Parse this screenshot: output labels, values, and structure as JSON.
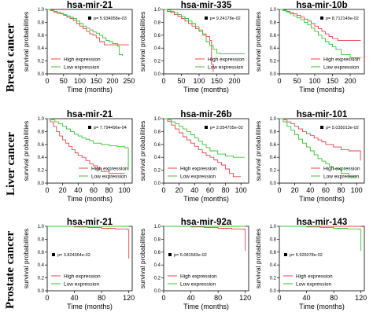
{
  "figure": {
    "row_labels": [
      "Breast cancer",
      "Liver cancer",
      "Prostate cancer"
    ],
    "ylabel": "survival probabilities",
    "xlabel": "Time (months)",
    "legend": [
      "High expression",
      "Low expression"
    ],
    "colors": {
      "high": "#e8434b",
      "low": "#39c232"
    }
  },
  "chart_data": [
    {
      "type": "line",
      "title": "hsa-mir-21",
      "p_value": "p= 5.934958e-03",
      "xlabel": "Time (months)",
      "ylabel": "survival probabilities",
      "xlim": [
        0,
        260
      ],
      "ylim": [
        0,
        1
      ],
      "xticks": [
        0,
        50,
        100,
        150,
        200,
        250
      ],
      "legend_position": "bottom-left",
      "p_position": "top-right",
      "series": [
        {
          "name": "High expression",
          "x": [
            0,
            10,
            20,
            30,
            40,
            50,
            60,
            70,
            80,
            90,
            100,
            110,
            120,
            130,
            140,
            150,
            160,
            175,
            185,
            200,
            250
          ],
          "y": [
            1,
            0.98,
            0.96,
            0.94,
            0.93,
            0.91,
            0.88,
            0.86,
            0.83,
            0.78,
            0.74,
            0.7,
            0.66,
            0.62,
            0.6,
            0.56,
            0.5,
            0.45,
            0.45,
            0.45,
            0.45
          ]
        },
        {
          "name": "Low expression",
          "x": [
            0,
            10,
            20,
            30,
            40,
            50,
            60,
            70,
            80,
            90,
            100,
            110,
            120,
            130,
            140,
            150,
            160,
            170,
            180,
            190,
            200,
            215,
            220,
            230
          ],
          "y": [
            1,
            0.99,
            0.97,
            0.96,
            0.94,
            0.92,
            0.9,
            0.88,
            0.86,
            0.82,
            0.78,
            0.74,
            0.71,
            0.68,
            0.65,
            0.63,
            0.6,
            0.56,
            0.52,
            0.5,
            0.47,
            0.43,
            0.3,
            0.28
          ]
        }
      ]
    },
    {
      "type": "line",
      "title": "hsa-mir-335",
      "p_value": "p= 9.24178e-02",
      "xlabel": "Time (months)",
      "ylabel": "survival probabilities",
      "xlim": [
        0,
        240
      ],
      "ylim": [
        0,
        1
      ],
      "xticks": [
        0,
        50,
        100,
        150,
        200
      ],
      "legend_position": "bottom-right",
      "p_position": "top-right",
      "series": [
        {
          "name": "High expression",
          "x": [
            0,
            10,
            20,
            30,
            40,
            50,
            60,
            70,
            80,
            90,
            100,
            110,
            120,
            130,
            135,
            140
          ],
          "y": [
            1,
            0.97,
            0.95,
            0.92,
            0.89,
            0.86,
            0.82,
            0.78,
            0.74,
            0.7,
            0.66,
            0.62,
            0.58,
            0.52,
            0.15,
            0.03
          ]
        },
        {
          "name": "Low expression",
          "x": [
            0,
            10,
            20,
            30,
            40,
            50,
            60,
            70,
            80,
            90,
            100,
            110,
            120,
            130,
            140,
            150,
            160,
            230
          ],
          "y": [
            1,
            0.99,
            0.97,
            0.95,
            0.92,
            0.89,
            0.86,
            0.82,
            0.78,
            0.73,
            0.68,
            0.6,
            0.5,
            0.44,
            0.38,
            0.32,
            0.31,
            0.31
          ]
        }
      ]
    },
    {
      "type": "line",
      "title": "hsa-mir-10b",
      "p_value": "p= 8.712149e-02",
      "xlabel": "Time (months)",
      "ylabel": "survival probabilities",
      "xlim": [
        0,
        240
      ],
      "ylim": [
        0,
        1
      ],
      "xticks": [
        0,
        50,
        100,
        150,
        200
      ],
      "legend_position": "bottom-right",
      "p_position": "top-right",
      "series": [
        {
          "name": "High expression",
          "x": [
            0,
            10,
            20,
            30,
            40,
            50,
            60,
            70,
            80,
            90,
            100,
            110,
            120,
            130,
            140,
            150,
            165,
            230
          ],
          "y": [
            1,
            0.99,
            0.97,
            0.95,
            0.93,
            0.91,
            0.88,
            0.85,
            0.82,
            0.78,
            0.74,
            0.7,
            0.66,
            0.62,
            0.58,
            0.55,
            0.52,
            0.52
          ]
        },
        {
          "name": "Low expression",
          "x": [
            0,
            10,
            20,
            30,
            40,
            50,
            60,
            70,
            80,
            90,
            100,
            110,
            120,
            130,
            140,
            150,
            160,
            175,
            200,
            230
          ],
          "y": [
            1,
            0.98,
            0.96,
            0.93,
            0.9,
            0.87,
            0.84,
            0.8,
            0.76,
            0.71,
            0.66,
            0.6,
            0.55,
            0.5,
            0.46,
            0.42,
            0.38,
            0.3,
            0.25,
            0.25
          ]
        }
      ]
    },
    {
      "type": "line",
      "title": "hsa-mir-21",
      "p_value": "p= 7.794496e-04",
      "xlabel": "Time (months)",
      "ylabel": "survival probabilities",
      "xlim": [
        0,
        110
      ],
      "ylim": [
        0,
        1
      ],
      "xticks": [
        0,
        20,
        40,
        60,
        80,
        100
      ],
      "legend_position": "bottom-right",
      "p_position": "top-right",
      "series": [
        {
          "name": "High expression",
          "x": [
            0,
            4,
            8,
            12,
            16,
            20,
            24,
            28,
            32,
            36,
            40,
            45,
            50,
            55,
            60,
            65,
            70,
            80,
            90,
            100
          ],
          "y": [
            1,
            0.95,
            0.88,
            0.8,
            0.73,
            0.67,
            0.62,
            0.57,
            0.52,
            0.47,
            0.43,
            0.4,
            0.35,
            0.3,
            0.27,
            0.22,
            0.18,
            0.15,
            0.15,
            0.15
          ]
        },
        {
          "name": "Low expression",
          "x": [
            0,
            5,
            10,
            15,
            20,
            25,
            30,
            35,
            40,
            45,
            50,
            55,
            60,
            70,
            80,
            90,
            100,
            105
          ],
          "y": [
            1,
            0.98,
            0.95,
            0.92,
            0.88,
            0.84,
            0.8,
            0.76,
            0.73,
            0.7,
            0.68,
            0.66,
            0.62,
            0.6,
            0.58,
            0.57,
            0.55,
            0.2
          ]
        }
      ]
    },
    {
      "type": "line",
      "title": "hsa-mir-26b",
      "p_value": "p= 2.054705e-02",
      "xlabel": "Time (months)",
      "ylabel": "survival probabilities",
      "xlim": [
        0,
        110
      ],
      "ylim": [
        0,
        1
      ],
      "xticks": [
        0,
        20,
        40,
        60,
        80,
        100
      ],
      "legend_position": "bottom-left",
      "p_position": "top-right",
      "series": [
        {
          "name": "High expression",
          "x": [
            0,
            5,
            10,
            15,
            20,
            25,
            30,
            35,
            40,
            45,
            50,
            55,
            60,
            65,
            70,
            75,
            80,
            85,
            90,
            100
          ],
          "y": [
            1,
            0.96,
            0.9,
            0.84,
            0.78,
            0.72,
            0.67,
            0.62,
            0.57,
            0.52,
            0.47,
            0.43,
            0.4,
            0.36,
            0.32,
            0.28,
            0.22,
            0.15,
            0.1,
            0.1
          ]
        },
        {
          "name": "Low expression",
          "x": [
            0,
            5,
            10,
            15,
            20,
            25,
            30,
            35,
            40,
            45,
            50,
            55,
            60,
            70,
            80,
            90,
            100,
            105
          ],
          "y": [
            1,
            0.98,
            0.95,
            0.92,
            0.88,
            0.84,
            0.8,
            0.75,
            0.7,
            0.65,
            0.6,
            0.55,
            0.5,
            0.45,
            0.42,
            0.4,
            0.4,
            0.4
          ]
        }
      ]
    },
    {
      "type": "line",
      "title": "hsa-mir-101",
      "p_value": "p= 5.035013e-02",
      "xlabel": "Time (months)",
      "ylabel": "survival probabilities",
      "xlim": [
        0,
        110
      ],
      "ylim": [
        0,
        1
      ],
      "xticks": [
        0,
        20,
        40,
        60,
        80,
        100
      ],
      "legend_position": "bottom-right",
      "p_position": "top-right",
      "series": [
        {
          "name": "High expression",
          "x": [
            0,
            5,
            10,
            15,
            20,
            25,
            30,
            35,
            40,
            45,
            50,
            55,
            60,
            70,
            80,
            90,
            100,
            105
          ],
          "y": [
            1,
            0.98,
            0.95,
            0.92,
            0.88,
            0.84,
            0.8,
            0.77,
            0.74,
            0.7,
            0.67,
            0.64,
            0.6,
            0.56,
            0.52,
            0.5,
            0.5,
            0.35
          ]
        },
        {
          "name": "Low expression",
          "x": [
            0,
            5,
            10,
            15,
            20,
            25,
            30,
            35,
            40,
            45,
            50,
            55,
            60,
            65,
            70,
            80,
            90,
            100
          ],
          "y": [
            1,
            0.95,
            0.88,
            0.82,
            0.75,
            0.68,
            0.62,
            0.56,
            0.5,
            0.44,
            0.38,
            0.34,
            0.3,
            0.26,
            0.22,
            0.15,
            0.1,
            0.1
          ]
        }
      ]
    },
    {
      "type": "line",
      "title": "hsa-mir-21",
      "p_value": "p= 3.824364e-02",
      "xlabel": "Time (months)",
      "ylabel": "survival probabilities",
      "xlim": [
        0,
        125
      ],
      "ylim": [
        0,
        1
      ],
      "xticks": [
        0,
        40,
        80,
        120
      ],
      "legend_position": "bottom-left",
      "p_position": "middle-left",
      "series": [
        {
          "name": "High expression",
          "x": [
            0,
            20,
            40,
            60,
            80,
            100,
            118,
            120
          ],
          "y": [
            1,
            1,
            0.99,
            0.98,
            0.97,
            0.96,
            0.95,
            0.5
          ]
        },
        {
          "name": "Low expression",
          "x": [
            0,
            40,
            80,
            120
          ],
          "y": [
            1,
            1,
            1,
            1
          ]
        }
      ]
    },
    {
      "type": "line",
      "title": "hsa-mir-92a",
      "p_value": "p= 6.081583e-02",
      "xlabel": "Time (months)",
      "ylabel": "survival probabilities",
      "xlim": [
        0,
        125
      ],
      "ylim": [
        0,
        1
      ],
      "xticks": [
        0,
        40,
        80,
        120
      ],
      "legend_position": "bottom-left",
      "p_position": "middle-left",
      "series": [
        {
          "name": "High expression",
          "x": [
            0,
            20,
            40,
            60,
            80,
            100,
            118,
            120
          ],
          "y": [
            1,
            1,
            0.99,
            0.98,
            0.97,
            0.96,
            0.95,
            0.62
          ]
        },
        {
          "name": "Low expression",
          "x": [
            0,
            40,
            80,
            120
          ],
          "y": [
            1,
            1,
            1,
            1
          ]
        }
      ]
    },
    {
      "type": "line",
      "title": "hsa-mir-143",
      "p_value": "p= 5.925078e-02",
      "xlabel": "Time (months)",
      "ylabel": "survival probabilities",
      "xlim": [
        0,
        125
      ],
      "ylim": [
        0,
        1
      ],
      "xticks": [
        0,
        40,
        80,
        120
      ],
      "legend_position": "bottom-left",
      "p_position": "middle-left",
      "series": [
        {
          "name": "High expression",
          "x": [
            0,
            40,
            80,
            120
          ],
          "y": [
            1,
            1,
            1,
            1
          ]
        },
        {
          "name": "Low expression",
          "x": [
            0,
            20,
            40,
            60,
            80,
            100,
            118,
            120
          ],
          "y": [
            1,
            1,
            0.99,
            0.98,
            0.97,
            0.96,
            0.95,
            0.62
          ]
        }
      ]
    }
  ]
}
